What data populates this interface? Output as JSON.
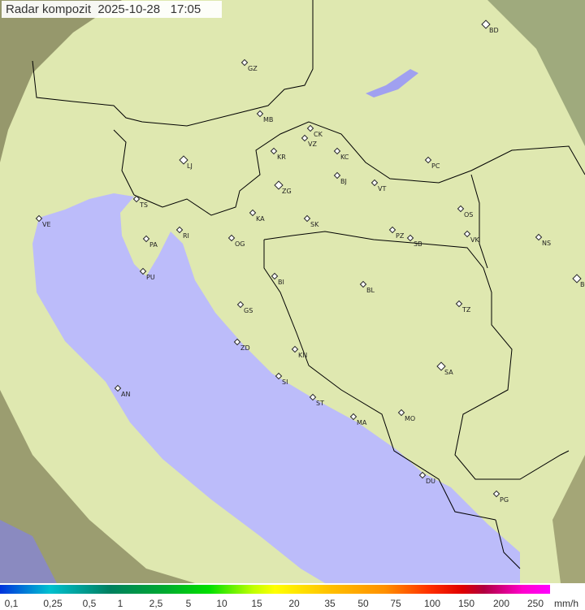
{
  "header": {
    "title": "Radar kompozit",
    "date": "2025-10-28",
    "time": "17:05"
  },
  "colors": {
    "land": "#dfe8b0",
    "sea": "#bcbcfa",
    "outside_coverage": "#8a8a60",
    "border": "#000000"
  },
  "cities": [
    {
      "code": "BD",
      "major": true
    },
    {
      "code": "GZ"
    },
    {
      "code": "MB"
    },
    {
      "code": "CK"
    },
    {
      "code": "VZ"
    },
    {
      "code": "KR"
    },
    {
      "code": "KC"
    },
    {
      "code": "LJ",
      "major": true
    },
    {
      "code": "ZG",
      "major": true
    },
    {
      "code": "BJ"
    },
    {
      "code": "VT"
    },
    {
      "code": "PC"
    },
    {
      "code": "TS"
    },
    {
      "code": "VE"
    },
    {
      "code": "RI"
    },
    {
      "code": "KA"
    },
    {
      "code": "SK"
    },
    {
      "code": "OS"
    },
    {
      "code": "PA"
    },
    {
      "code": "OG"
    },
    {
      "code": "PZ"
    },
    {
      "code": "SB"
    },
    {
      "code": "VK"
    },
    {
      "code": "NS"
    },
    {
      "code": "PU"
    },
    {
      "code": "BI"
    },
    {
      "code": "BL"
    },
    {
      "code": "BG",
      "major": true
    },
    {
      "code": "GS"
    },
    {
      "code": "TZ"
    },
    {
      "code": "ZD"
    },
    {
      "code": "KN"
    },
    {
      "code": "SA",
      "major": true
    },
    {
      "code": "SI"
    },
    {
      "code": "AN"
    },
    {
      "code": "ST"
    },
    {
      "code": "MO"
    },
    {
      "code": "MA"
    },
    {
      "code": "DU"
    },
    {
      "code": "PG"
    }
  ],
  "legend": {
    "unit": "mm/h",
    "labels": [
      "0,1",
      "0,25",
      "0,5",
      "1",
      "2,5",
      "5",
      "10",
      "15",
      "20",
      "35",
      "50",
      "75",
      "100",
      "150",
      "200",
      "250"
    ]
  }
}
